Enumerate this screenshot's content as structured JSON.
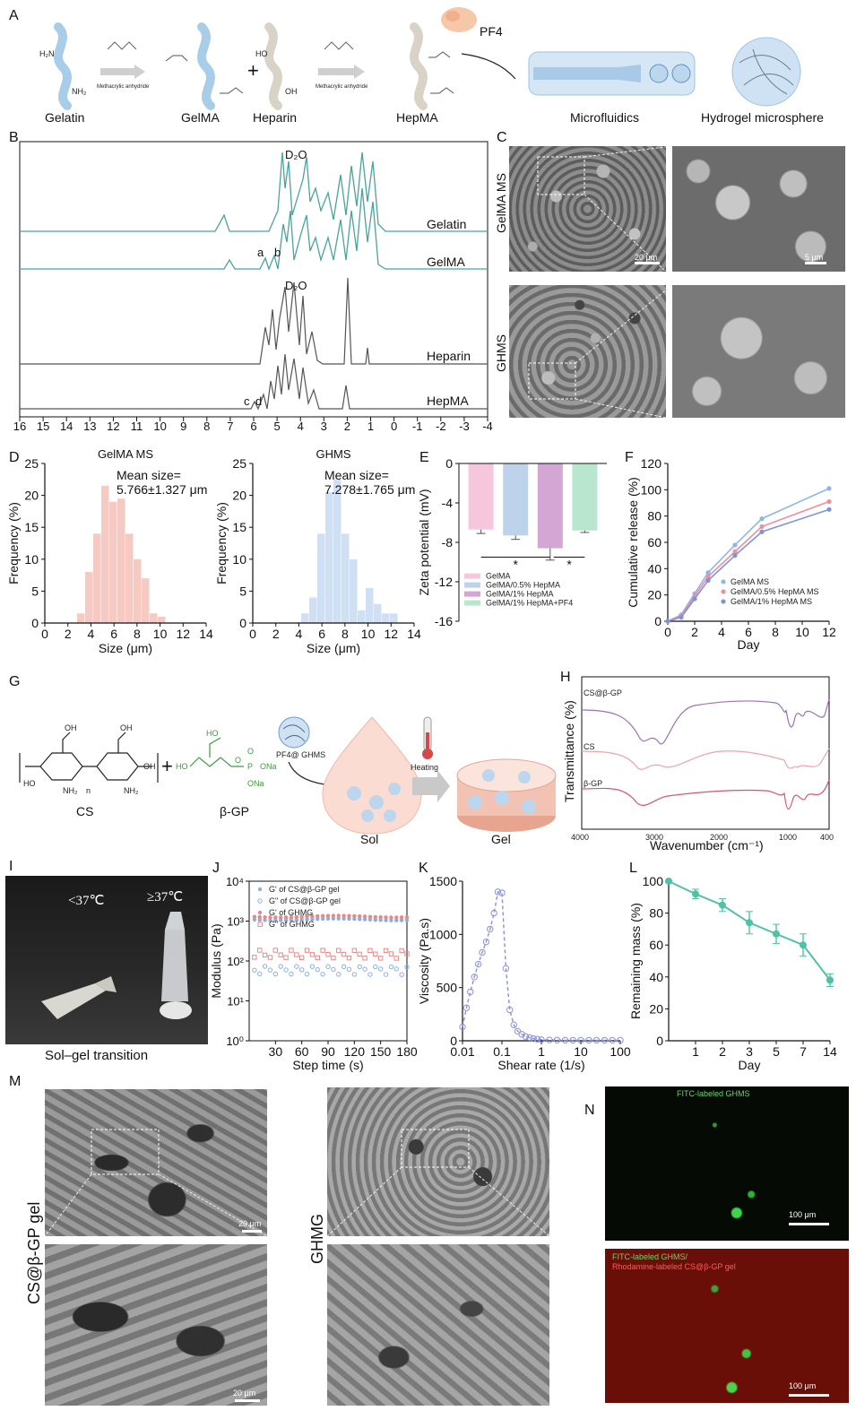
{
  "panels": {
    "A": {
      "label": "A",
      "molecules": [
        "Gelatin",
        "GelMA",
        "Heparin",
        "HepMA"
      ],
      "reagent_label": "Methacrylic anhydride",
      "plus": "+",
      "protein": "PF4",
      "process": [
        "Microfluidics",
        "Hydrogel microsphere"
      ],
      "group_labels": [
        "H₂N",
        "NH₂",
        "HO",
        "OH"
      ]
    },
    "B": {
      "label": "B",
      "peak_labels": [
        "D₂O",
        "D₂O",
        "a",
        "b",
        "c",
        "d"
      ],
      "traces": [
        "Gelatin",
        "GelMA",
        "Heparin",
        "HepMA"
      ],
      "axis_ticks": [
        "16",
        "15",
        "14",
        "13",
        "12",
        "11",
        "10",
        "9",
        "8",
        "7",
        "6",
        "5",
        "4",
        "3",
        "2",
        "1",
        "0",
        "-1",
        "-2",
        "-3",
        "-4"
      ]
    },
    "C": {
      "label": "C",
      "row_labels": [
        "GelMA MS",
        "GHMS"
      ],
      "scalebars": [
        "20 μm",
        "5 μm"
      ]
    },
    "D": {
      "label": "D"
    },
    "E": {
      "label": "E"
    },
    "F": {
      "label": "F"
    },
    "G": {
      "label": "G",
      "names": [
        "CS",
        "β-GP",
        "Sol",
        "Gel"
      ],
      "carrier": "PF4@ GHMS",
      "step": "Heating",
      "plus": "+",
      "subscripts": [
        "n",
        "OH",
        "OH",
        "OH",
        "NH₂",
        "NH₂",
        "HO",
        "O",
        "HO",
        "ONa",
        "ONa",
        "P",
        "O"
      ]
    },
    "H": {
      "label": "H"
    },
    "I": {
      "label": "I",
      "temps": [
        "<37℃",
        "≥37℃"
      ],
      "caption": "Sol–gel transition"
    },
    "J": {
      "label": "J"
    },
    "K": {
      "label": "K"
    },
    "L": {
      "label": "L"
    },
    "M": {
      "label": "M",
      "row_labels": [
        "CS@β-GP gel",
        "GHMG"
      ],
      "scalebars": [
        "20 μm",
        "20 μm"
      ]
    },
    "N": {
      "label": "N",
      "captions": [
        "FITC-labeled GHMS",
        "FITC-labeled GHMS/",
        "Rhodamine-labeled CS@β-GP gel"
      ],
      "scalebars": [
        "100 μm",
        "100 μm"
      ]
    }
  },
  "chart_data": [
    {
      "panel": "D-left",
      "type": "bar",
      "title": "GelMA MS",
      "annotation": [
        "Mean size=",
        "5.766±1.327 μm"
      ],
      "xlabel": "Size (μm)",
      "ylabel": "Frequency (%)",
      "xlim": [
        0,
        14
      ],
      "ylim": [
        0,
        25
      ],
      "xticks": [
        "0",
        "2",
        "4",
        "6",
        "8",
        "10",
        "12",
        "14"
      ],
      "yticks": [
        "0",
        "5",
        "10",
        "15",
        "20",
        "25"
      ],
      "bin_width": 0.7,
      "x": [
        2.8,
        3.5,
        4.2,
        4.9,
        5.6,
        6.3,
        7.0,
        7.7,
        8.4,
        9.1,
        9.8
      ],
      "values": [
        1.5,
        8,
        14,
        21.5,
        19,
        19.5,
        14,
        10,
        7,
        1.5,
        1
      ],
      "color": "#f7c9c3"
    },
    {
      "panel": "D-right",
      "type": "bar",
      "title": "GHMS",
      "annotation": [
        "Mean size=",
        "7.278±1.765 μm"
      ],
      "xlabel": "Size (μm)",
      "ylabel": "Frequency (%)",
      "xlim": [
        0,
        14
      ],
      "ylim": [
        0,
        25
      ],
      "xticks": [
        "0",
        "2",
        "4",
        "6",
        "8",
        "10",
        "12",
        "14"
      ],
      "yticks": [
        "0",
        "5",
        "10",
        "15",
        "20",
        "25"
      ],
      "bin_width": 0.7,
      "x": [
        4.2,
        4.9,
        5.6,
        6.3,
        7.0,
        7.7,
        8.4,
        9.1,
        9.8,
        10.5,
        11.2,
        11.9
      ],
      "values": [
        1.5,
        4,
        14,
        20.5,
        22.5,
        14,
        10,
        2,
        5.5,
        3,
        1.5,
        1.5
      ],
      "color": "#cfe0f5"
    },
    {
      "panel": "E",
      "type": "bar",
      "xlabel": "",
      "ylabel": "Zeta potential (mV)",
      "ylim": [
        -16,
        0
      ],
      "yticks": [
        "0",
        "-4",
        "-8",
        "-12",
        "-16"
      ],
      "categories": [
        "GelMA",
        "GelMA/0.5% HepMA",
        "GelMA/1% HepMA",
        "GelMA/1% HepMA+PF4"
      ],
      "values": [
        -6.7,
        -7.3,
        -8.6,
        -6.8
      ],
      "errors": [
        0.4,
        0.4,
        1.2,
        0.2
      ],
      "colors": [
        "#f6c6dd",
        "#bcd3ea",
        "#d3a6d4",
        "#b9e6cf"
      ],
      "significance": [
        "*",
        "*"
      ],
      "legend": "bottom-left"
    },
    {
      "panel": "F",
      "type": "line",
      "xlabel": "Day",
      "ylabel": "Cumulative release (%)",
      "xlim": [
        0,
        12
      ],
      "ylim": [
        0,
        120
      ],
      "xticks": [
        "0",
        "2",
        "4",
        "6",
        "8",
        "10",
        "12"
      ],
      "yticks": [
        "0",
        "20",
        "40",
        "60",
        "80",
        "100",
        "120"
      ],
      "x": [
        0,
        1,
        2,
        3,
        5,
        7,
        12
      ],
      "series": [
        {
          "name": "GelMA MS",
          "values": [
            0,
            5,
            21,
            37,
            58,
            78,
            101
          ],
          "color": "#8fb6e6"
        },
        {
          "name": "GelMA/0.5% HepMA MS",
          "values": [
            0,
            4,
            19,
            34,
            53,
            72,
            91
          ],
          "color": "#ee8ea3"
        },
        {
          "name": "GelMA/1% HepMA MS",
          "values": [
            0,
            3,
            17,
            31,
            50,
            68,
            85
          ],
          "color": "#7f94d6"
        }
      ],
      "legend": "bottom-right"
    },
    {
      "panel": "H",
      "type": "line",
      "xlabel": "Wavenumber (cm⁻¹)",
      "ylabel": "Transmittance (%)",
      "xticks": [
        "4000",
        "3000",
        "2000",
        "1000",
        "400"
      ],
      "series": [
        {
          "name": "CS@β-GP",
          "color": "#9a72b8"
        },
        {
          "name": "CS",
          "color": "#f2a3a3"
        },
        {
          "name": "β-GP",
          "color": "#d9536e"
        }
      ]
    },
    {
      "panel": "J",
      "type": "scatter",
      "xlabel": "Step time (s)",
      "ylabel": "Modulus (Pa)",
      "xlim": [
        0,
        180
      ],
      "xticks": [
        "30",
        "60",
        "90",
        "120",
        "150",
        "180"
      ],
      "yticks": [
        "10⁰",
        "10¹",
        "10²",
        "10³",
        "10⁴"
      ],
      "scale": "log",
      "series": [
        {
          "name": "G' of CS@β-GP gel",
          "level": 1100,
          "color": "#8ab0de",
          "marker": "filled"
        },
        {
          "name": "G\" of CS@β-GP gel",
          "level": 60,
          "color": "#8ab0de",
          "marker": "open"
        },
        {
          "name": "G' of GHMG",
          "level": 1300,
          "color": "#e58a8a",
          "marker": "filled"
        },
        {
          "name": "G\" of GHMG",
          "level": 150,
          "color": "#e58a8a",
          "marker": "open-square"
        }
      ],
      "legend": "top-left"
    },
    {
      "panel": "K",
      "type": "line",
      "xlabel": "Shear rate (1/s)",
      "ylabel": "Viscosity (Pa.s)",
      "xlim": [
        0.01,
        100
      ],
      "ylim": [
        0,
        1500
      ],
      "scale": "log-x",
      "xticks": [
        "0.01",
        "0.1",
        "1",
        "10",
        "100"
      ],
      "yticks": [
        "0",
        "500",
        "1000",
        "1500"
      ],
      "x": [
        0.01,
        0.0126,
        0.0158,
        0.02,
        0.0251,
        0.0316,
        0.0398,
        0.05,
        0.063,
        0.079,
        0.1,
        0.126,
        0.158,
        0.2,
        0.25,
        0.32,
        0.4,
        0.5,
        0.63,
        0.79,
        1,
        1.6,
        2.5,
        4,
        6.3,
        10,
        16,
        25,
        40,
        63,
        100
      ],
      "values": [
        130,
        310,
        460,
        600,
        720,
        830,
        930,
        1050,
        1200,
        1400,
        1390,
        680,
        290,
        150,
        90,
        60,
        40,
        30,
        20,
        15,
        10,
        8,
        6,
        5,
        5,
        5,
        5,
        5,
        5,
        5,
        5
      ],
      "color": "#8b92d6"
    },
    {
      "panel": "L",
      "type": "line",
      "xlabel": "Day",
      "ylabel": "Remaining mass (%)",
      "ylim": [
        0,
        100
      ],
      "categories": [
        "1",
        "2",
        "3",
        "5",
        "7",
        "14"
      ],
      "yticks": [
        "0",
        "20",
        "40",
        "60",
        "80",
        "100"
      ],
      "x": [
        0,
        1,
        2,
        3,
        5,
        7,
        14
      ],
      "values": [
        100,
        92,
        85,
        74,
        67,
        60,
        38
      ],
      "errors": [
        0,
        3,
        4,
        7,
        6,
        7,
        4
      ],
      "color": "#4fc2a6"
    }
  ]
}
